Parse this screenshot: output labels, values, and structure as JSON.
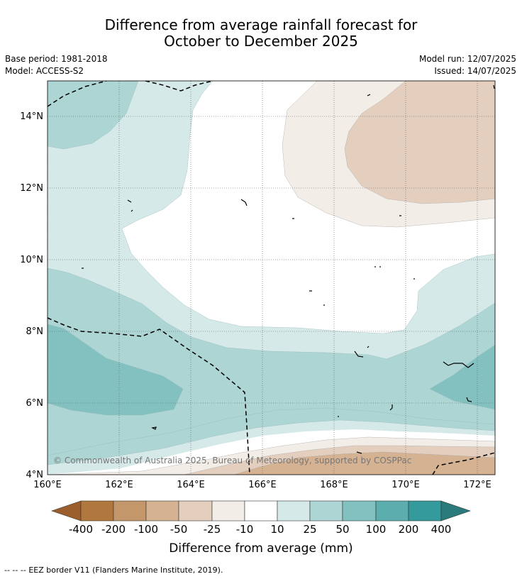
{
  "title": {
    "line1": "Difference from average rainfall forecast for",
    "line2": "October to December 2025"
  },
  "meta": {
    "base_period": "Base period: 1981-2018",
    "model": "Model: ACCESS-S2",
    "model_run": "Model run: 12/07/2025",
    "issued": "Issued: 14/07/2025"
  },
  "map": {
    "lon_labels": [
      "160°E",
      "162°E",
      "164°E",
      "166°E",
      "168°E",
      "170°E",
      "172°E"
    ],
    "lat_labels": [
      "14°N",
      "12°N",
      "10°N",
      "8°N",
      "6°N",
      "4°N"
    ],
    "copyright": "© Commonwealth of Australia 2025, Bureau of Meteorology, supported by COSPPac"
  },
  "colorbar": {
    "labels": [
      "-400",
      "-200",
      "-100",
      "-50",
      "-25",
      "-10",
      "10",
      "25",
      "50",
      "100",
      "200",
      "400"
    ],
    "colors": {
      "lt_neg400": "#9a5f2c",
      "neg400_neg200": "#b0773e",
      "neg200_neg100": "#c39769",
      "neg100_neg50": "#d4b292",
      "neg50_neg25": "#e4cfbe",
      "neg25_neg10": "#f3ede7",
      "neg10_10": "#ffffff",
      "10_25": "#d5e9e8",
      "25_50": "#acd5d4",
      "50_100": "#83c1c0",
      "100_200": "#5badae",
      "200_400": "#359a9b",
      "gt_400": "#2b7b7c"
    },
    "title": "Difference from average (mm)"
  },
  "legend": {
    "symbol": "-- -- --",
    "text": "EEZ border V11 (Flanders Marine Institute, 2019)."
  }
}
